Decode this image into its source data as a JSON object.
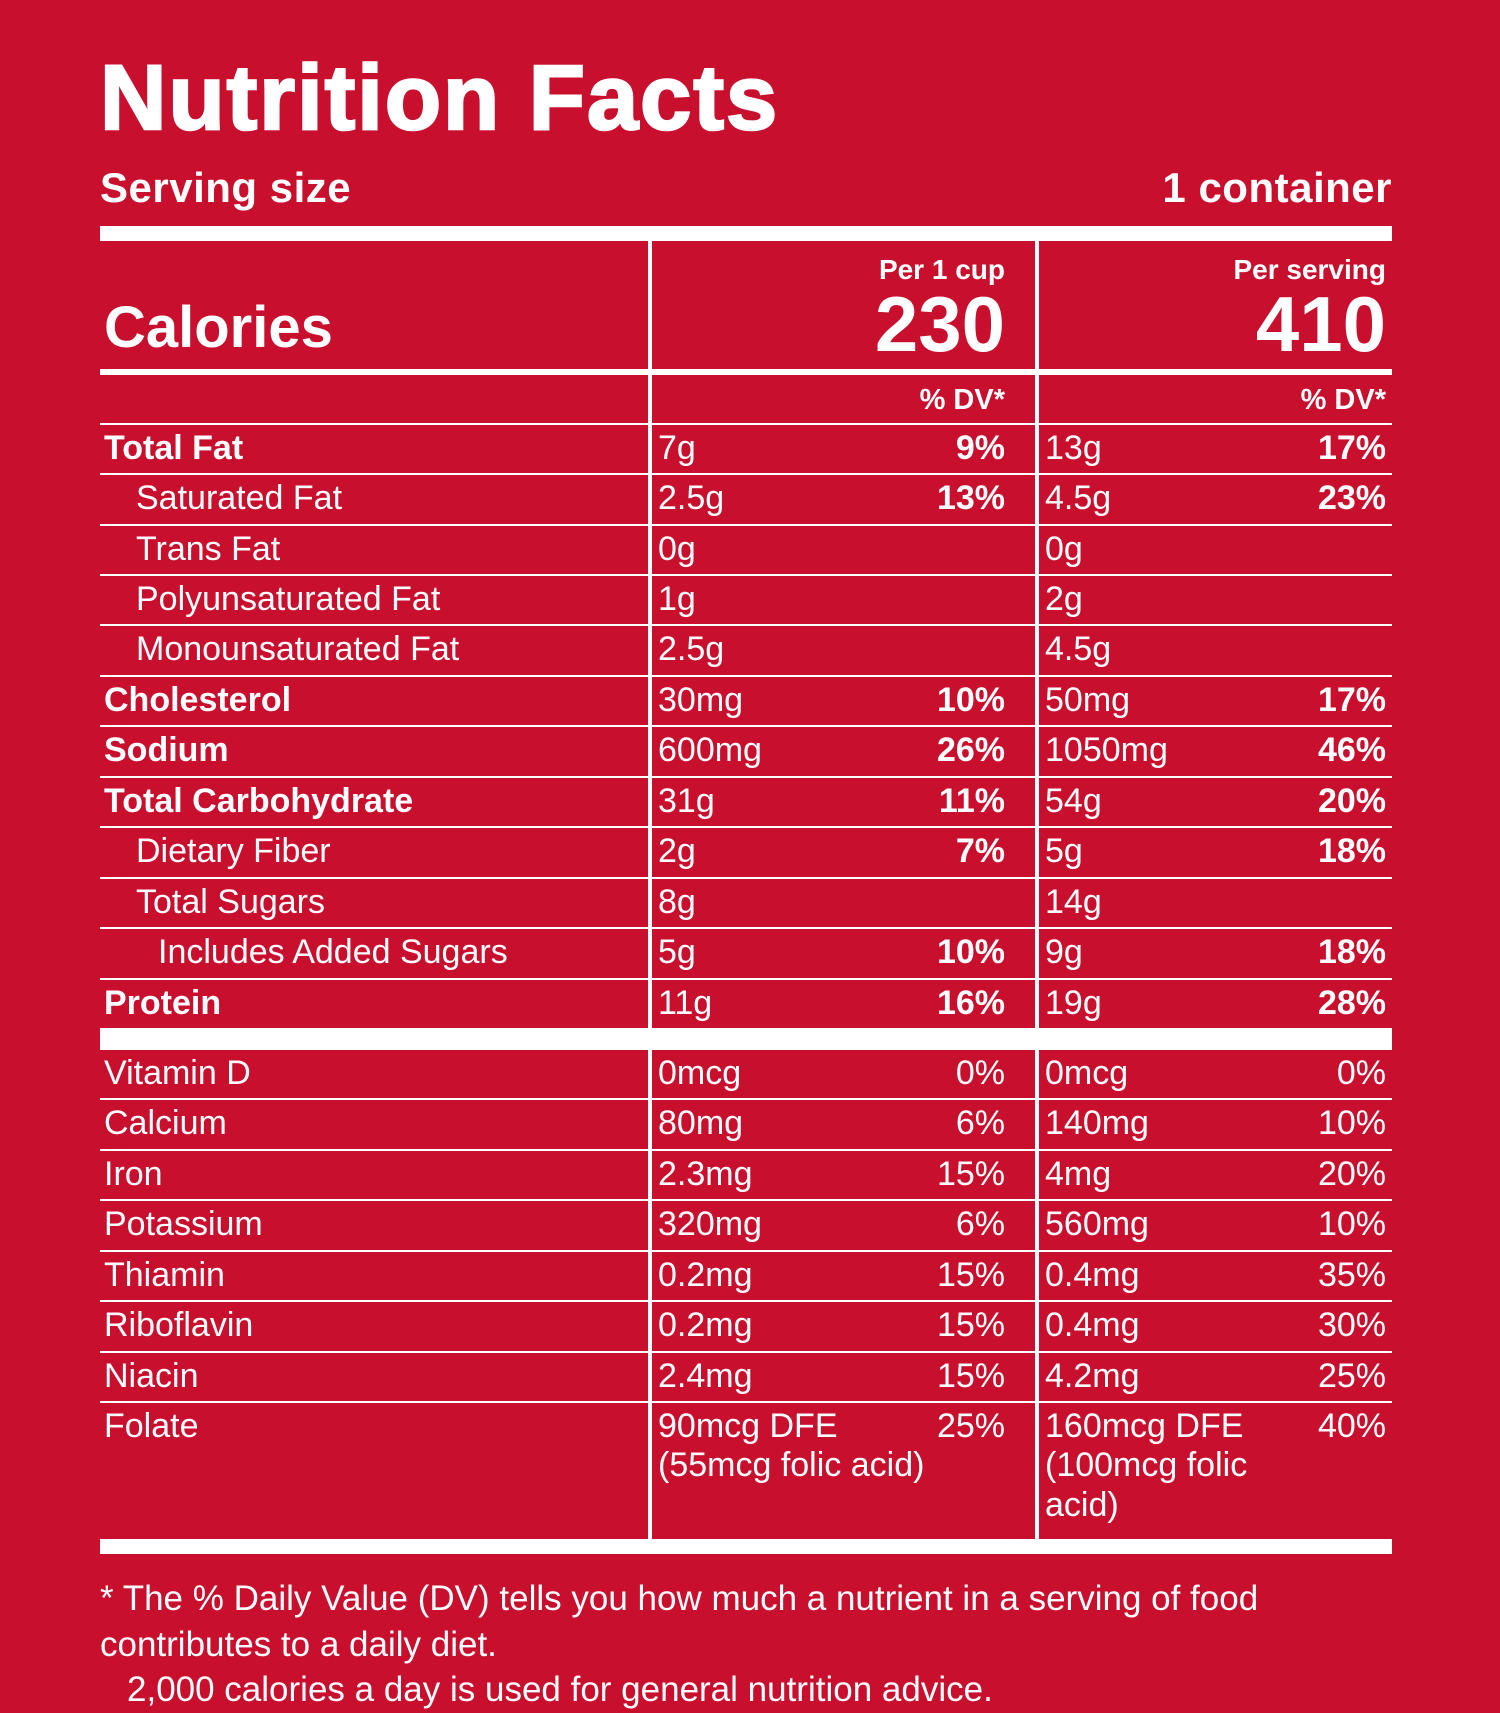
{
  "colors": {
    "background": "#C8102E",
    "text": "#FFFFFF"
  },
  "title": "Nutrition Facts",
  "serving": {
    "label": "Serving size",
    "value": "1 container"
  },
  "calories": {
    "label": "Calories",
    "col1_header": "Per 1 cup",
    "col1_value": "230",
    "col2_header": "Per serving",
    "col2_value": "410"
  },
  "dv_header_col1": "% DV*",
  "dv_header_col2": "% DV*",
  "rows": {
    "main": [
      {
        "name": "Total Fat",
        "bold": true,
        "indent": 0,
        "c1_amount": "7g",
        "c1_dv": "9%",
        "c2_amount": "13g",
        "c2_dv": "17%"
      },
      {
        "name": "Saturated Fat",
        "bold": false,
        "indent": 1,
        "c1_amount": "2.5g",
        "c1_dv": "13%",
        "c2_amount": "4.5g",
        "c2_dv": "23%"
      },
      {
        "name": "Trans Fat",
        "bold": false,
        "indent": 1,
        "c1_amount": "0g",
        "c1_dv": "",
        "c2_amount": "0g",
        "c2_dv": ""
      },
      {
        "name": "Polyunsaturated Fat",
        "bold": false,
        "indent": 1,
        "c1_amount": "1g",
        "c1_dv": "",
        "c2_amount": "2g",
        "c2_dv": ""
      },
      {
        "name": "Monounsaturated Fat",
        "bold": false,
        "indent": 1,
        "c1_amount": "2.5g",
        "c1_dv": "",
        "c2_amount": "4.5g",
        "c2_dv": ""
      },
      {
        "name": "Cholesterol",
        "bold": true,
        "indent": 0,
        "c1_amount": "30mg",
        "c1_dv": "10%",
        "c2_amount": "50mg",
        "c2_dv": "17%"
      },
      {
        "name": "Sodium",
        "bold": true,
        "indent": 0,
        "c1_amount": "600mg",
        "c1_dv": "26%",
        "c2_amount": "1050mg",
        "c2_dv": "46%"
      },
      {
        "name": "Total Carbohydrate",
        "bold": true,
        "indent": 0,
        "c1_amount": "31g",
        "c1_dv": "11%",
        "c2_amount": "54g",
        "c2_dv": "20%"
      },
      {
        "name": "Dietary Fiber",
        "bold": false,
        "indent": 1,
        "c1_amount": "2g",
        "c1_dv": "7%",
        "c2_amount": "5g",
        "c2_dv": "18%"
      },
      {
        "name": "Total Sugars",
        "bold": false,
        "indent": 1,
        "c1_amount": "8g",
        "c1_dv": "",
        "c2_amount": "14g",
        "c2_dv": ""
      },
      {
        "name": "Includes Added Sugars",
        "bold": false,
        "indent": 2,
        "c1_amount": "5g",
        "c1_dv": "10%",
        "c2_amount": "9g",
        "c2_dv": "18%"
      },
      {
        "name": "Protein",
        "bold": true,
        "indent": 0,
        "c1_amount": "11g",
        "c1_dv": "16%",
        "c2_amount": "19g",
        "c2_dv": "28%"
      }
    ],
    "vitamins": [
      {
        "name": "Vitamin D",
        "bold": false,
        "indent": 0,
        "c1_amount": "0mcg",
        "c1_dv": "0%",
        "c2_amount": "0mcg",
        "c2_dv": "0%"
      },
      {
        "name": "Calcium",
        "bold": false,
        "indent": 0,
        "c1_amount": "80mg",
        "c1_dv": "6%",
        "c2_amount": "140mg",
        "c2_dv": "10%"
      },
      {
        "name": "Iron",
        "bold": false,
        "indent": 0,
        "c1_amount": "2.3mg",
        "c1_dv": "15%",
        "c2_amount": "4mg",
        "c2_dv": "20%"
      },
      {
        "name": "Potassium",
        "bold": false,
        "indent": 0,
        "c1_amount": "320mg",
        "c1_dv": "6%",
        "c2_amount": "560mg",
        "c2_dv": "10%"
      },
      {
        "name": "Thiamin",
        "bold": false,
        "indent": 0,
        "c1_amount": "0.2mg",
        "c1_dv": "15%",
        "c2_amount": "0.4mg",
        "c2_dv": "35%"
      },
      {
        "name": "Riboflavin",
        "bold": false,
        "indent": 0,
        "c1_amount": "0.2mg",
        "c1_dv": "15%",
        "c2_amount": "0.4mg",
        "c2_dv": "30%"
      },
      {
        "name": "Niacin",
        "bold": false,
        "indent": 0,
        "c1_amount": "2.4mg",
        "c1_dv": "15%",
        "c2_amount": "4.2mg",
        "c2_dv": "25%"
      },
      {
        "name": "Folate",
        "bold": false,
        "indent": 0,
        "c1_amount": "90mcg DFE",
        "c1_sub": "(55mcg folic acid)",
        "c1_dv": "25%",
        "c2_amount": "160mcg DFE",
        "c2_sub": "(100mcg folic acid)",
        "c2_dv": "40%"
      }
    ]
  },
  "footnote": {
    "line1": "* The % Daily Value (DV) tells you how much a nutrient in a serving of food contributes to a daily diet.",
    "line2": "2,000 calories a day is used for general nutrition advice."
  }
}
